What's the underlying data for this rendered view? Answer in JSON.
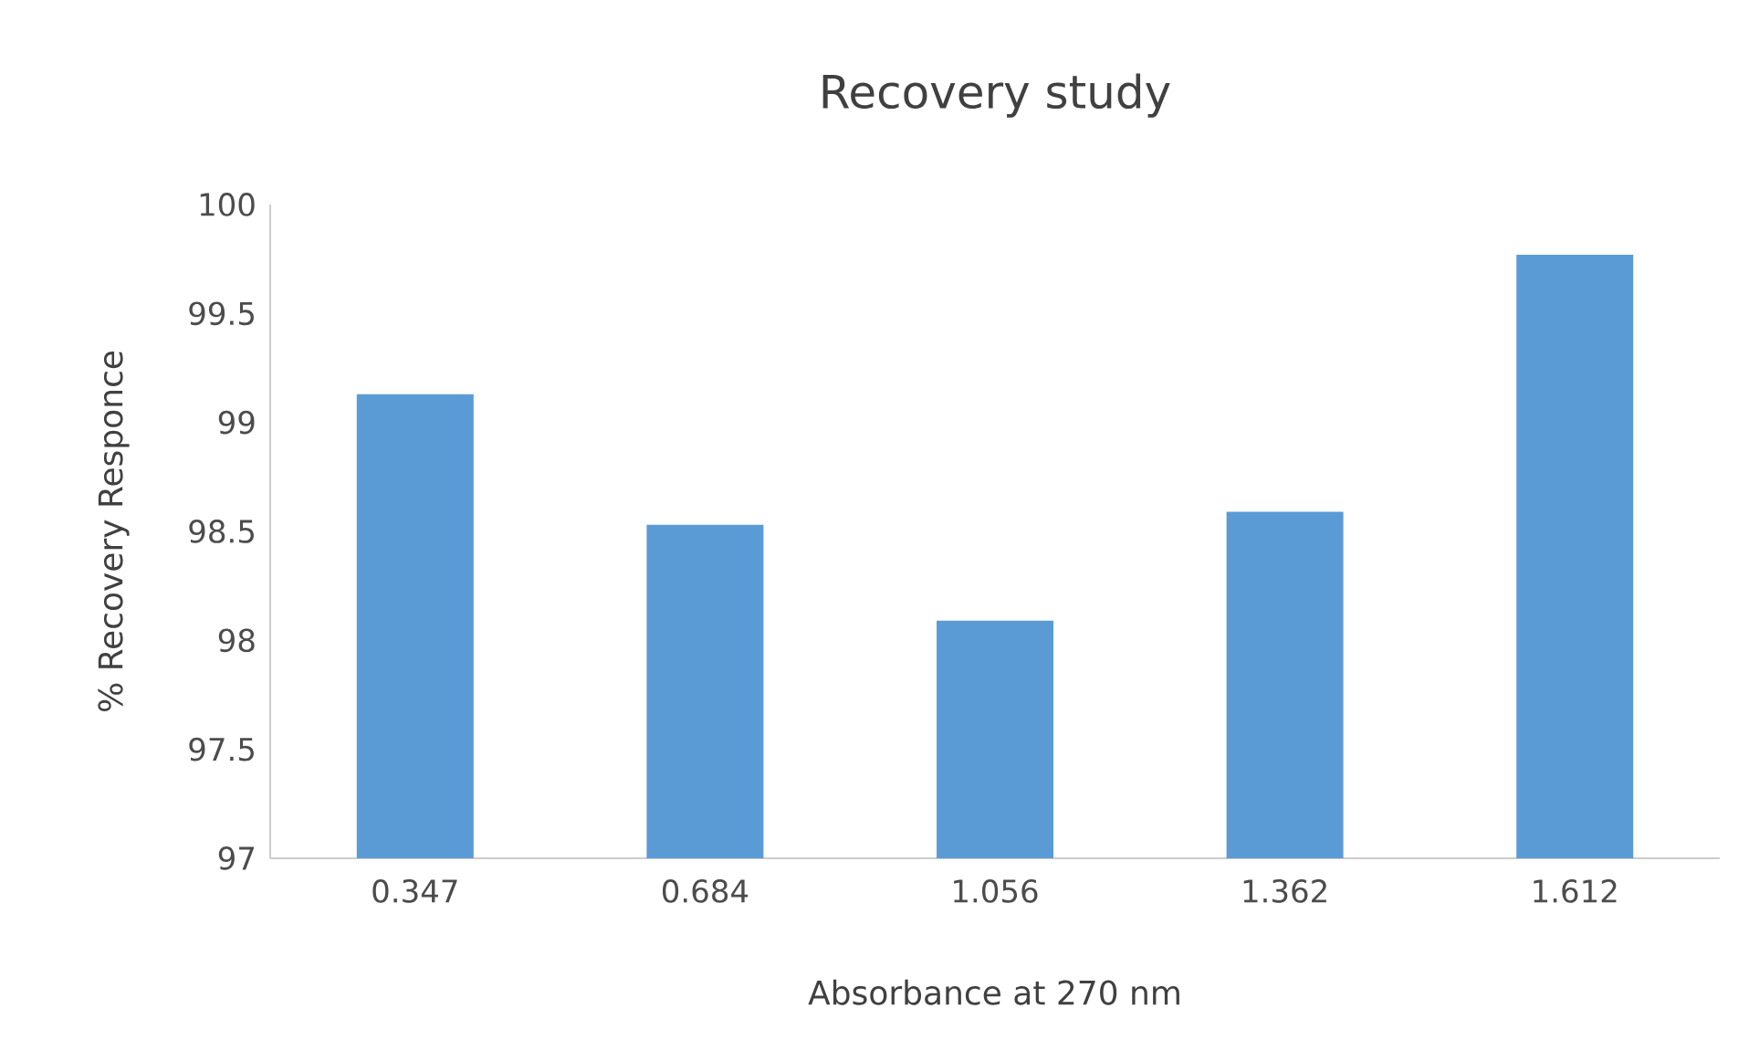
{
  "chart_data": {
    "type": "bar",
    "title": "Recovery study",
    "xlabel": "Absorbance at 270 nm",
    "ylabel": "% Recovery Responce",
    "categories": [
      "0.347",
      "0.684",
      "1.056",
      "1.362",
      "1.612"
    ],
    "values": [
      99.13,
      98.53,
      98.09,
      98.59,
      99.77
    ],
    "color": "#5b9bd5",
    "ylim": [
      97,
      100
    ],
    "yticks": [
      97,
      97.5,
      98,
      98.5,
      99,
      99.5,
      100
    ]
  }
}
